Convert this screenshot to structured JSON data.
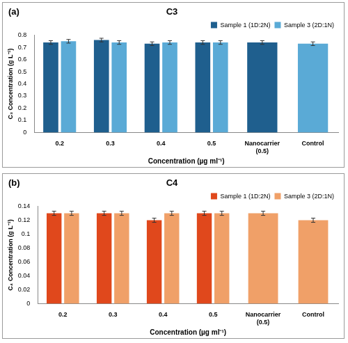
{
  "chart_data": [
    {
      "type": "bar",
      "title": "C3",
      "annotation": "(a)",
      "x_label": "Concentration (µg ml⁻¹)",
      "y_label": "C₃ Concentration (g L⁻¹)",
      "categories": [
        "0.2",
        "0.3",
        "0.4",
        "0.5",
        "Nanocarrier (0.5)",
        "Control"
      ],
      "series": [
        {
          "name": "Sample 1 (1D:2N)",
          "color": "#1f5f8e",
          "values": [
            0.74,
            0.76,
            0.73,
            0.74,
            0.74,
            null
          ],
          "errors": [
            0.015,
            0.015,
            0.015,
            0.015,
            0.015,
            null
          ]
        },
        {
          "name": "Sample 3 (2D:1N)",
          "color": "#5aaad6",
          "values": [
            0.75,
            0.74,
            0.74,
            0.74,
            null,
            0.73
          ],
          "errors": [
            0.015,
            0.015,
            0.015,
            0.015,
            null,
            0.015
          ]
        }
      ],
      "ylim": [
        0,
        0.8
      ],
      "yticks": [
        0,
        0.1,
        0.2,
        0.3,
        0.4,
        0.5,
        0.6,
        0.7,
        0.8
      ],
      "grid": false,
      "legend": "upper right"
    },
    {
      "type": "bar",
      "title": "C4",
      "annotation": "(b)",
      "x_label": "Concentration (µg ml⁻¹)",
      "y_label": "C₄ Concentration (g L⁻¹)",
      "categories": [
        "0.2",
        "0.3",
        "0.4",
        "0.5",
        "Nanocarrier (0.5)",
        "Control"
      ],
      "series": [
        {
          "name": "Sample 1 (1D:2N)",
          "color": "#e0481c",
          "values": [
            0.13,
            0.13,
            0.12,
            0.13,
            null,
            null
          ],
          "errors": [
            0.003,
            0.003,
            0.003,
            0.003,
            null,
            null
          ]
        },
        {
          "name": "Sample 3 (2D:1N)",
          "color": "#f0a068",
          "values": [
            0.13,
            0.13,
            0.13,
            0.13,
            0.13,
            0.12
          ],
          "errors": [
            0.003,
            0.003,
            0.003,
            0.003,
            0.003,
            0.003
          ]
        }
      ],
      "ylim": [
        0,
        0.14
      ],
      "yticks": [
        0,
        0.02,
        0.04,
        0.06,
        0.08,
        0.1,
        0.12,
        0.14
      ],
      "grid": false,
      "legend": "upper right"
    }
  ]
}
